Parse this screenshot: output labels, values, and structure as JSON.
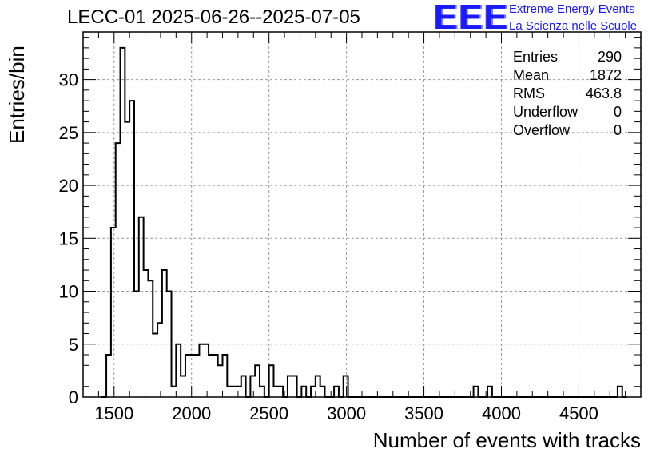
{
  "header": {
    "title": "LECC-01 2025-06-26--2025-07-05",
    "logo_text": "EEE",
    "logo_line1": "Extreme Energy Events",
    "logo_line2": "La Scienza nelle Scuole"
  },
  "stats": {
    "rows": [
      {
        "label": "Entries",
        "value": "290"
      },
      {
        "label": "Mean",
        "value": "1872"
      },
      {
        "label": "RMS",
        "value": "463.8"
      },
      {
        "label": "Underflow",
        "value": "0"
      },
      {
        "label": "Overflow",
        "value": "0"
      }
    ]
  },
  "colors": {
    "histogram": "#000000",
    "grid": "#999999",
    "logo": "#1a1aff"
  },
  "chart_data": {
    "type": "bar",
    "style": "step-histogram",
    "title": "LECC-01 2025-06-26--2025-07-05",
    "xlabel": "Number of events with tracks",
    "ylabel": "Entries/bin",
    "xlim": [
      1300,
      4900
    ],
    "ylim": [
      0,
      34.5
    ],
    "grid": true,
    "bin_width": 30,
    "x_ticks": [
      1500,
      2000,
      2500,
      3000,
      3500,
      4000,
      4500
    ],
    "y_ticks": [
      0,
      5,
      10,
      15,
      20,
      25,
      30
    ],
    "series": [
      {
        "x": [
          1420,
          1450,
          1480,
          1510,
          1540,
          1570,
          1600,
          1630,
          1660,
          1690,
          1720,
          1750,
          1780,
          1810,
          1840,
          1870,
          1900,
          1930,
          1960,
          1990,
          2020,
          2050,
          2080,
          2110,
          2140,
          2170,
          2200,
          2230,
          2260,
          2290,
          2320,
          2350,
          2380,
          2410,
          2440,
          2470,
          2500,
          2530,
          2560,
          2590,
          2620,
          2650,
          2680,
          2710,
          2740,
          2770,
          2800,
          2830,
          2860,
          2890,
          2920,
          2950,
          2980,
          3010,
          3040,
          3070,
          3100,
          3130,
          3160,
          3190,
          3220,
          3250,
          3280,
          3310,
          3790,
          3820,
          3850,
          3880,
          3910,
          3940,
          4720,
          4750,
          4780
        ],
        "values": [
          0,
          4,
          16,
          24,
          33,
          26,
          28,
          10,
          17,
          12,
          11,
          6,
          7,
          12,
          10,
          1,
          5,
          2,
          4,
          4,
          4,
          5,
          5,
          4,
          4,
          3,
          4,
          1,
          1,
          1,
          2,
          0,
          2,
          3,
          1,
          0,
          3,
          1,
          1,
          0,
          2,
          2,
          0,
          1,
          0,
          1,
          2,
          1,
          0,
          0,
          1,
          0,
          2,
          0,
          0,
          0,
          0,
          0,
          0,
          0,
          0,
          0,
          0,
          0,
          0,
          1,
          0,
          0,
          1,
          0,
          0,
          1,
          0
        ]
      }
    ],
    "stats": {
      "entries": 290,
      "mean": 1872,
      "rms": 463.8,
      "underflow": 0,
      "overflow": 0
    }
  }
}
